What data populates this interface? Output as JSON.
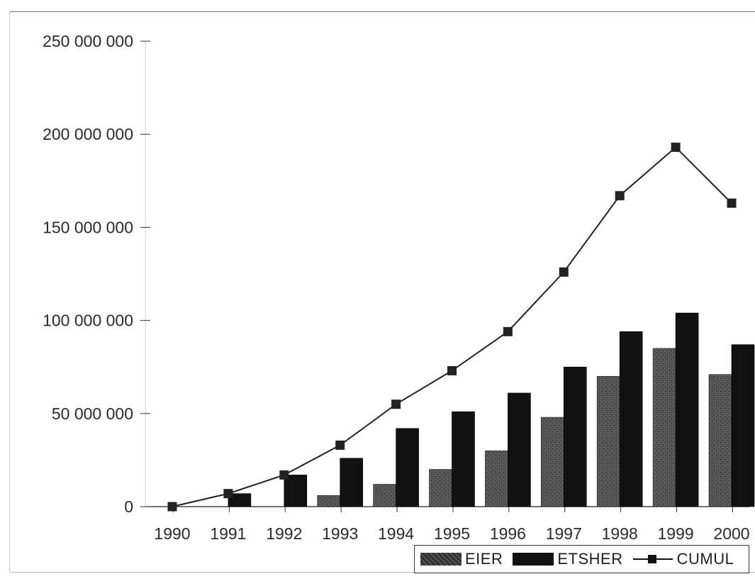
{
  "chart_data": {
    "type": "bar",
    "title": "",
    "xlabel": "",
    "ylabel": "",
    "categories": [
      "1990",
      "1991",
      "1992",
      "1993",
      "1994",
      "1995",
      "1996",
      "1997",
      "1998",
      "1999",
      "2000"
    ],
    "ylim": [
      0,
      250000000
    ],
    "yticks": [
      0,
      50000000,
      100000000,
      150000000,
      200000000,
      250000000
    ],
    "ytick_labels": [
      "0",
      "50 000 000",
      "100 000 000",
      "150 000 000",
      "200 000 000",
      "250 000 000"
    ],
    "grid": false,
    "legend_position": "bottom-right",
    "series": [
      {
        "name": "EIER",
        "type": "bar",
        "color": "#4a4a4a",
        "values": [
          0,
          0,
          0,
          6000000,
          12000000,
          20000000,
          30000000,
          48000000,
          70000000,
          85000000,
          71000000
        ]
      },
      {
        "name": "ETSHER",
        "type": "bar",
        "color": "#111111",
        "values": [
          0,
          7000000,
          17000000,
          26000000,
          42000000,
          51000000,
          61000000,
          75000000,
          94000000,
          104000000,
          87000000
        ]
      },
      {
        "name": "CUMUL",
        "type": "line",
        "marker": "square",
        "color": "#222222",
        "values": [
          0,
          7000000,
          17000000,
          33000000,
          55000000,
          73000000,
          94000000,
          126000000,
          167000000,
          193000000,
          163000000
        ]
      }
    ]
  }
}
